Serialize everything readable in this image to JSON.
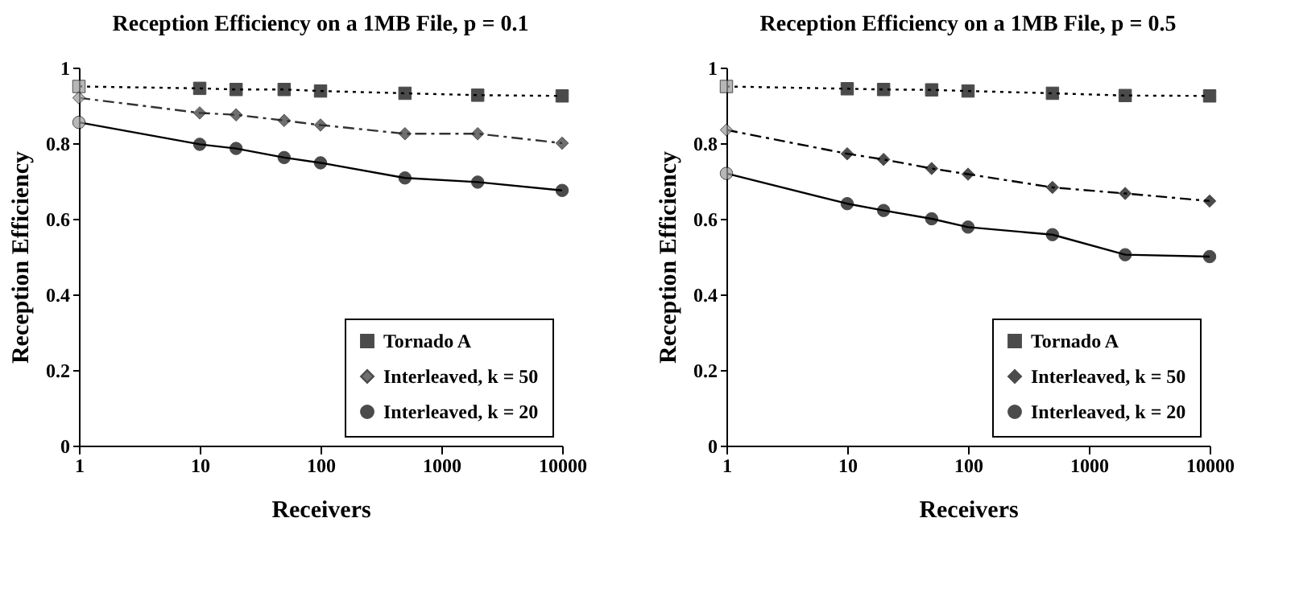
{
  "chart_data": [
    {
      "type": "line",
      "title": "Reception Efficiency on a 1MB File, p = 0.1",
      "xlabel": "Receivers",
      "ylabel": "Reception Efficiency",
      "x": [
        1,
        10,
        20,
        50,
        100,
        500,
        2000,
        10000
      ],
      "log": "x",
      "xlim": [
        1,
        10000
      ],
      "xticks": [
        1,
        10,
        100,
        1000,
        10000
      ],
      "ylim": [
        0,
        1
      ],
      "yticks": [
        0,
        0.2,
        0.4,
        0.6,
        0.8,
        1
      ],
      "grid": false,
      "legend": "bottom right",
      "series": [
        {
          "name": "Tornado A",
          "color": "#000000",
          "marker": "square",
          "line_style": "dotted",
          "values": [
            0.95,
            0.945,
            0.942,
            0.942,
            0.938,
            0.932,
            0.927,
            0.925
          ]
        },
        {
          "name": "Interleaved, k = 50",
          "color": "#333333",
          "marker": "diamond",
          "line_style": "dashed",
          "values": [
            0.92,
            0.88,
            0.875,
            0.86,
            0.848,
            0.825,
            0.825,
            0.8
          ]
        },
        {
          "name": "Interleaved, k = 20",
          "color": "#000000",
          "marker": "circle",
          "line_style": "solid",
          "values": [
            0.855,
            0.797,
            0.786,
            0.762,
            0.748,
            0.708,
            0.697,
            0.675
          ]
        }
      ]
    },
    {
      "type": "line",
      "title": "Reception Efficiency on a 1MB File, p = 0.5",
      "xlabel": "Receivers",
      "ylabel": "Reception Efficiency",
      "x": [
        1,
        10,
        20,
        50,
        100,
        500,
        2000,
        10000
      ],
      "log": "x",
      "xlim": [
        1,
        10000
      ],
      "xticks": [
        1,
        10,
        100,
        1000,
        10000
      ],
      "ylim": [
        0,
        1
      ],
      "yticks": [
        0,
        0.2,
        0.4,
        0.6,
        0.8,
        1
      ],
      "grid": false,
      "legend": "bottom right",
      "series": [
        {
          "name": "Tornado A",
          "color": "#000000",
          "marker": "square",
          "line_style": "dotted",
          "values": [
            0.95,
            0.944,
            0.942,
            0.941,
            0.938,
            0.932,
            0.926,
            0.925
          ]
        },
        {
          "name": "Interleaved, k = 50",
          "color": "#000000",
          "marker": "diamond",
          "line_style": "dashed",
          "values": [
            0.835,
            0.772,
            0.757,
            0.733,
            0.718,
            0.683,
            0.667,
            0.647
          ]
        },
        {
          "name": "Interleaved, k = 20",
          "color": "#000000",
          "marker": "circle",
          "line_style": "solid",
          "values": [
            0.72,
            0.64,
            0.622,
            0.6,
            0.578,
            0.558,
            0.505,
            0.5
          ]
        }
      ]
    }
  ]
}
